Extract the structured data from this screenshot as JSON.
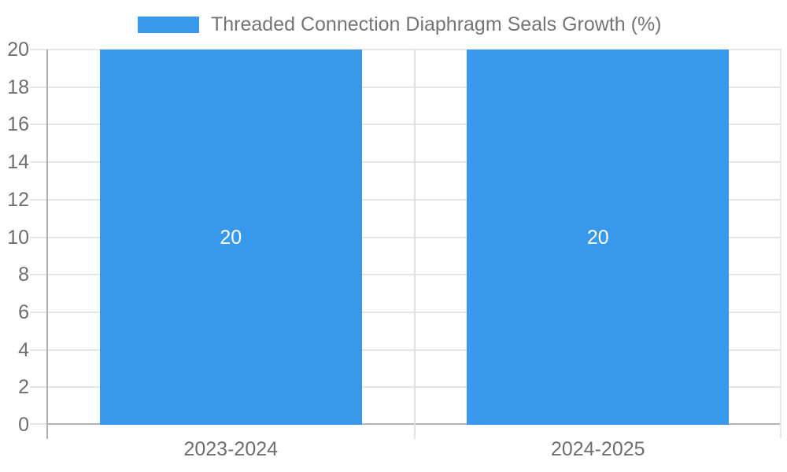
{
  "chart_data": {
    "type": "bar",
    "title": "",
    "categories": [
      "2023-2024",
      "2024-2025"
    ],
    "series": [
      {
        "name": "Threaded Connection Diaphragm Seals Growth (%)",
        "values": [
          20,
          20
        ]
      }
    ],
    "bar_value_labels": [
      "20",
      "20"
    ],
    "xlabel": "",
    "ylabel": "",
    "ylim": [
      0,
      20
    ],
    "yticks": [
      0,
      2,
      4,
      6,
      8,
      10,
      12,
      14,
      16,
      18,
      20
    ],
    "grid": true,
    "legend_position": "top-center",
    "colors": {
      "bar": "#3899ec",
      "legend_text": "#757575",
      "axis_text": "#6e6e6e",
      "gridline": "#e6e6e6",
      "axis_line": "#b0b0b0",
      "bar_label_text": "#ffffff",
      "background": "#ffffff"
    }
  }
}
